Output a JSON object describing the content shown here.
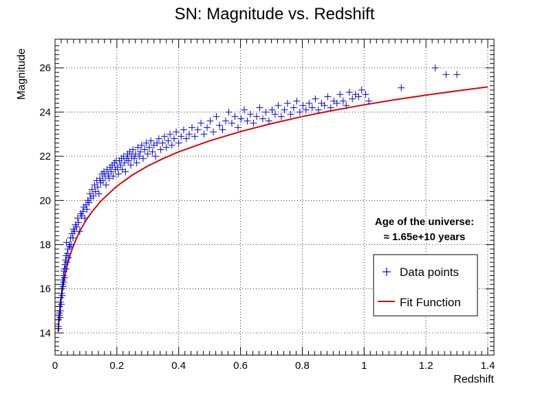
{
  "chart_data": {
    "type": "scatter",
    "title": "SN: Magnitude vs. Redshift",
    "xlabel": "Redshift",
    "ylabel": "Magnitude",
    "xlim": [
      0,
      1.42
    ],
    "ylim": [
      13.0,
      27.3
    ],
    "x_major_ticks": [
      0,
      0.2,
      0.4,
      0.6,
      0.8,
      1,
      1.2,
      1.4
    ],
    "x_tick_labels": [
      "0",
      "0.2",
      "0.4",
      "0.6",
      "0.8",
      "1",
      "1.2",
      "1.4"
    ],
    "y_major_ticks": [
      14,
      16,
      18,
      20,
      22,
      24,
      26
    ],
    "y_tick_labels": [
      "14",
      "16",
      "18",
      "20",
      "22",
      "24",
      "26"
    ],
    "grid": true,
    "annotation": {
      "line1": "Age of the universe:",
      "line2": "≈ 1.65e+10 years"
    },
    "legend": {
      "placement": "lower-right",
      "entries": [
        "Data points",
        "Fit Function"
      ]
    },
    "colors": {
      "data": "#0000cc",
      "fit": "#dd0000"
    },
    "series": [
      {
        "name": "Data points",
        "points": [
          [
            0.01,
            14.3
          ],
          [
            0.011,
            14.6
          ],
          [
            0.012,
            14.2
          ],
          [
            0.013,
            14.8
          ],
          [
            0.014,
            14.9
          ],
          [
            0.015,
            15.2
          ],
          [
            0.016,
            14.7
          ],
          [
            0.017,
            15.4
          ],
          [
            0.018,
            15.0
          ],
          [
            0.019,
            15.6
          ],
          [
            0.02,
            15.3
          ],
          [
            0.021,
            15.8
          ],
          [
            0.022,
            16.0
          ],
          [
            0.023,
            15.7
          ],
          [
            0.024,
            16.2
          ],
          [
            0.025,
            16.4
          ],
          [
            0.026,
            16.1
          ],
          [
            0.027,
            16.6
          ],
          [
            0.028,
            16.3
          ],
          [
            0.029,
            16.8
          ],
          [
            0.03,
            16.9
          ],
          [
            0.031,
            16.5
          ],
          [
            0.032,
            17.1
          ],
          [
            0.034,
            17.3
          ],
          [
            0.035,
            16.9
          ],
          [
            0.036,
            17.5
          ],
          [
            0.037,
            18.1
          ],
          [
            0.038,
            17.2
          ],
          [
            0.04,
            17.6
          ],
          [
            0.042,
            17.8
          ],
          [
            0.044,
            17.4
          ],
          [
            0.046,
            18.0
          ],
          [
            0.048,
            17.9
          ],
          [
            0.05,
            18.3
          ],
          [
            0.052,
            18.0
          ],
          [
            0.055,
            18.5
          ],
          [
            0.058,
            18.3
          ],
          [
            0.06,
            18.7
          ],
          [
            0.063,
            18.6
          ],
          [
            0.066,
            18.9
          ],
          [
            0.07,
            18.8
          ],
          [
            0.073,
            19.2
          ],
          [
            0.076,
            19.0
          ],
          [
            0.08,
            18.6
          ],
          [
            0.083,
            19.4
          ],
          [
            0.086,
            19.3
          ],
          [
            0.09,
            19.5
          ],
          [
            0.093,
            19.7
          ],
          [
            0.096,
            19.2
          ],
          [
            0.1,
            19.8
          ],
          [
            0.103,
            19.6
          ],
          [
            0.106,
            20.0
          ],
          [
            0.11,
            19.9
          ],
          [
            0.113,
            20.3
          ],
          [
            0.116,
            20.1
          ],
          [
            0.12,
            20.5
          ],
          [
            0.124,
            20.2
          ],
          [
            0.128,
            20.7
          ],
          [
            0.131,
            20.4
          ],
          [
            0.135,
            20.9
          ],
          [
            0.138,
            20.6
          ],
          [
            0.142,
            20.3
          ],
          [
            0.145,
            21.0
          ],
          [
            0.148,
            20.8
          ],
          [
            0.152,
            21.2
          ],
          [
            0.155,
            20.9
          ],
          [
            0.158,
            21.3
          ],
          [
            0.162,
            21.1
          ],
          [
            0.165,
            20.7
          ],
          [
            0.168,
            21.4
          ],
          [
            0.172,
            21.2
          ],
          [
            0.175,
            21.0
          ],
          [
            0.178,
            21.5
          ],
          [
            0.182,
            21.3
          ],
          [
            0.185,
            21.6
          ],
          [
            0.188,
            21.1
          ],
          [
            0.192,
            21.7
          ],
          [
            0.195,
            21.4
          ],
          [
            0.198,
            21.8
          ],
          [
            0.202,
            21.5
          ],
          [
            0.205,
            21.2
          ],
          [
            0.208,
            21.8
          ],
          [
            0.212,
            21.6
          ],
          [
            0.215,
            21.9
          ],
          [
            0.218,
            21.4
          ],
          [
            0.222,
            22.0
          ],
          [
            0.225,
            21.7
          ],
          [
            0.228,
            21.3
          ],
          [
            0.232,
            21.9
          ],
          [
            0.235,
            22.1
          ],
          [
            0.238,
            21.8
          ],
          [
            0.242,
            22.2
          ],
          [
            0.245,
            21.6
          ],
          [
            0.248,
            22.0
          ],
          [
            0.252,
            22.3
          ],
          [
            0.256,
            21.9
          ],
          [
            0.26,
            22.1
          ],
          [
            0.264,
            21.7
          ],
          [
            0.268,
            22.4
          ],
          [
            0.272,
            22.0
          ],
          [
            0.276,
            22.2
          ],
          [
            0.28,
            22.5
          ],
          [
            0.285,
            21.9
          ],
          [
            0.29,
            22.3
          ],
          [
            0.295,
            22.6
          ],
          [
            0.3,
            22.1
          ],
          [
            0.305,
            22.4
          ],
          [
            0.31,
            22.7
          ],
          [
            0.315,
            22.2
          ],
          [
            0.32,
            22.5
          ],
          [
            0.325,
            22.0
          ],
          [
            0.33,
            22.6
          ],
          [
            0.336,
            22.8
          ],
          [
            0.342,
            22.3
          ],
          [
            0.348,
            22.6
          ],
          [
            0.354,
            22.9
          ],
          [
            0.36,
            22.4
          ],
          [
            0.366,
            22.7
          ],
          [
            0.372,
            23.0
          ],
          [
            0.378,
            22.5
          ],
          [
            0.385,
            22.8
          ],
          [
            0.392,
            23.1
          ],
          [
            0.4,
            22.6
          ],
          [
            0.408,
            22.9
          ],
          [
            0.416,
            23.2
          ],
          [
            0.425,
            22.8
          ],
          [
            0.434,
            23.0
          ],
          [
            0.443,
            23.3
          ],
          [
            0.452,
            22.9
          ],
          [
            0.462,
            23.2
          ],
          [
            0.472,
            23.5
          ],
          [
            0.482,
            23.0
          ],
          [
            0.492,
            23.3
          ],
          [
            0.502,
            23.6
          ],
          [
            0.512,
            23.1
          ],
          [
            0.522,
            23.8
          ],
          [
            0.532,
            23.4
          ],
          [
            0.542,
            23.2
          ],
          [
            0.552,
            23.6
          ],
          [
            0.562,
            24.0
          ],
          [
            0.572,
            23.5
          ],
          [
            0.582,
            23.8
          ],
          [
            0.592,
            23.3
          ],
          [
            0.602,
            23.7
          ],
          [
            0.612,
            24.1
          ],
          [
            0.622,
            23.6
          ],
          [
            0.632,
            23.9
          ],
          [
            0.642,
            23.5
          ],
          [
            0.652,
            23.8
          ],
          [
            0.662,
            24.2
          ],
          [
            0.672,
            23.7
          ],
          [
            0.682,
            24.0
          ],
          [
            0.692,
            23.6
          ],
          [
            0.702,
            24.1
          ],
          [
            0.712,
            23.9
          ],
          [
            0.722,
            24.3
          ],
          [
            0.732,
            23.8
          ],
          [
            0.742,
            24.1
          ],
          [
            0.752,
            24.4
          ],
          [
            0.762,
            23.9
          ],
          [
            0.772,
            24.2
          ],
          [
            0.782,
            24.5
          ],
          [
            0.792,
            24.0
          ],
          [
            0.802,
            24.3
          ],
          [
            0.812,
            24.1
          ],
          [
            0.822,
            24.4
          ],
          [
            0.832,
            24.2
          ],
          [
            0.842,
            24.6
          ],
          [
            0.852,
            24.1
          ],
          [
            0.862,
            24.4
          ],
          [
            0.872,
            24.3
          ],
          [
            0.882,
            24.7
          ],
          [
            0.892,
            24.2
          ],
          [
            0.902,
            24.5
          ],
          [
            0.912,
            24.4
          ],
          [
            0.922,
            24.8
          ],
          [
            0.932,
            24.5
          ],
          [
            0.942,
            24.3
          ],
          [
            0.952,
            24.9
          ],
          [
            0.962,
            24.6
          ],
          [
            0.972,
            24.8
          ],
          [
            0.982,
            24.7
          ],
          [
            0.992,
            25.0
          ],
          [
            1.005,
            24.8
          ],
          [
            1.015,
            24.5
          ],
          [
            1.12,
            25.1
          ],
          [
            1.23,
            26.0
          ],
          [
            1.265,
            25.7
          ],
          [
            1.3,
            25.7
          ]
        ]
      },
      {
        "name": "Fit Function",
        "x": [
          0.01,
          0.015,
          0.02,
          0.025,
          0.03,
          0.04,
          0.05,
          0.06,
          0.08,
          0.1,
          0.12,
          0.15,
          0.2,
          0.25,
          0.3,
          0.35,
          0.4,
          0.5,
          0.6,
          0.7,
          0.8,
          0.9,
          1.0,
          1.1,
          1.2,
          1.3,
          1.4
        ],
        "y": [
          14.05,
          14.95,
          15.58,
          16.07,
          16.47,
          17.1,
          17.58,
          17.98,
          18.61,
          19.1,
          19.5,
          20.0,
          20.65,
          21.15,
          21.56,
          21.9,
          22.2,
          22.7,
          23.12,
          23.48,
          23.8,
          24.08,
          24.33,
          24.56,
          24.77,
          24.96,
          25.14
        ]
      }
    ]
  }
}
